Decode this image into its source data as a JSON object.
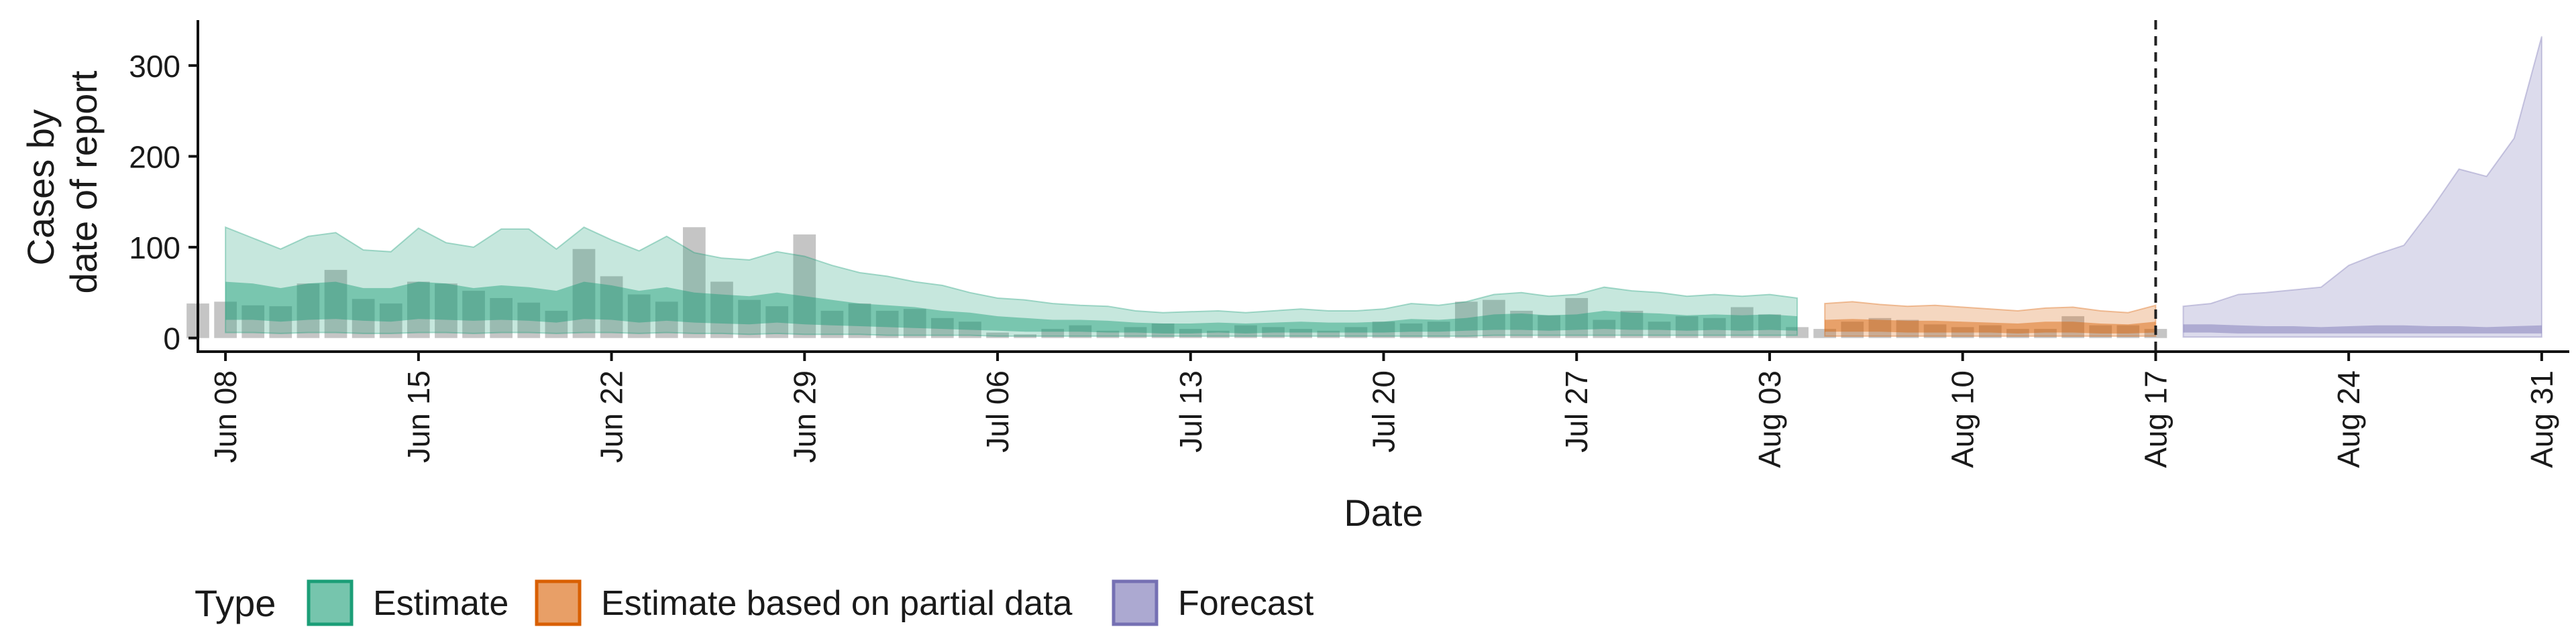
{
  "chart_data": {
    "type": "area",
    "title": "",
    "xlabel": "Date",
    "ylabel_lines": [
      "Cases by",
      "date of report"
    ],
    "ylim": [
      -15,
      350
    ],
    "yticks": [
      0,
      100,
      200,
      300
    ],
    "x_start": "Jun 07",
    "x_end": "Sep 01",
    "xticks": [
      "Jun 08",
      "Jun 15",
      "Jun 22",
      "Jun 29",
      "Jul 06",
      "Jul 13",
      "Jul 20",
      "Jul 27",
      "Aug 03",
      "Aug 10",
      "Aug 17",
      "Aug 24",
      "Aug 31"
    ],
    "vline": "Aug 17",
    "legend": {
      "title": "Type",
      "position": "bottom",
      "items": [
        {
          "label": "Estimate",
          "color": "#1b9e77"
        },
        {
          "label": "Estimate based on partial data",
          "color": "#d95f02"
        },
        {
          "label": "Forecast",
          "color": "#7570b3"
        }
      ]
    },
    "reported_cases": {
      "dates": [
        "Jun 07",
        "Jun 08",
        "Jun 09",
        "Jun 10",
        "Jun 11",
        "Jun 12",
        "Jun 13",
        "Jun 14",
        "Jun 15",
        "Jun 16",
        "Jun 17",
        "Jun 18",
        "Jun 19",
        "Jun 20",
        "Jun 21",
        "Jun 22",
        "Jun 23",
        "Jun 24",
        "Jun 25",
        "Jun 26",
        "Jun 27",
        "Jun 28",
        "Jun 29",
        "Jun 30",
        "Jul 01",
        "Jul 02",
        "Jul 03",
        "Jul 04",
        "Jul 05",
        "Jul 06",
        "Jul 07",
        "Jul 08",
        "Jul 09",
        "Jul 10",
        "Jul 11",
        "Jul 12",
        "Jul 13",
        "Jul 14",
        "Jul 15",
        "Jul 16",
        "Jul 17",
        "Jul 18",
        "Jul 19",
        "Jul 20",
        "Jul 21",
        "Jul 22",
        "Jul 23",
        "Jul 24",
        "Jul 25",
        "Jul 26",
        "Jul 27",
        "Jul 28",
        "Jul 29",
        "Jul 30",
        "Jul 31",
        "Aug 01",
        "Aug 02",
        "Aug 03",
        "Aug 04",
        "Aug 05",
        "Aug 06",
        "Aug 07",
        "Aug 08",
        "Aug 09",
        "Aug 10",
        "Aug 11",
        "Aug 12",
        "Aug 13",
        "Aug 14",
        "Aug 15",
        "Aug 16",
        "Aug 17"
      ],
      "values": [
        38,
        40,
        36,
        35,
        60,
        75,
        43,
        38,
        62,
        60,
        52,
        44,
        39,
        30,
        98,
        68,
        48,
        40,
        122,
        62,
        42,
        35,
        114,
        30,
        38,
        30,
        32,
        22,
        18,
        6,
        4,
        10,
        14,
        8,
        12,
        16,
        10,
        8,
        14,
        12,
        10,
        8,
        12,
        18,
        16,
        18,
        40,
        42,
        30,
        25,
        44,
        20,
        30,
        18,
        24,
        22,
        34,
        26,
        12,
        10,
        18,
        22,
        20,
        15,
        12,
        14,
        10,
        10,
        24,
        14,
        14,
        10
      ]
    },
    "series": [
      {
        "name": "Estimate",
        "dates": [
          "Jun 08",
          "Jun 09",
          "Jun 10",
          "Jun 11",
          "Jun 12",
          "Jun 13",
          "Jun 14",
          "Jun 15",
          "Jun 16",
          "Jun 17",
          "Jun 18",
          "Jun 19",
          "Jun 20",
          "Jun 21",
          "Jun 22",
          "Jun 23",
          "Jun 24",
          "Jun 25",
          "Jun 26",
          "Jun 27",
          "Jun 28",
          "Jun 29",
          "Jun 30",
          "Jul 01",
          "Jul 02",
          "Jul 03",
          "Jul 04",
          "Jul 05",
          "Jul 06",
          "Jul 07",
          "Jul 08",
          "Jul 09",
          "Jul 10",
          "Jul 11",
          "Jul 12",
          "Jul 13",
          "Jul 14",
          "Jul 15",
          "Jul 16",
          "Jul 17",
          "Jul 18",
          "Jul 19",
          "Jul 20",
          "Jul 21",
          "Jul 22",
          "Jul 23",
          "Jul 24",
          "Jul 25",
          "Jul 26",
          "Jul 27",
          "Jul 28",
          "Jul 29",
          "Jul 30",
          "Jul 31",
          "Aug 01",
          "Aug 02",
          "Aug 03",
          "Aug 04"
        ],
        "upper_90": [
          122,
          110,
          98,
          112,
          116,
          97,
          95,
          121,
          105,
          100,
          120,
          120,
          98,
          122,
          108,
          96,
          112,
          94,
          88,
          86,
          95,
          90,
          80,
          72,
          68,
          62,
          58,
          50,
          44,
          42,
          38,
          36,
          35,
          30,
          28,
          29,
          30,
          28,
          30,
          32,
          30,
          30,
          32,
          38,
          36,
          40,
          48,
          50,
          46,
          48,
          56,
          52,
          50,
          46,
          48,
          46,
          48,
          44
        ],
        "upper_50": [
          62,
          60,
          55,
          60,
          62,
          55,
          55,
          62,
          60,
          55,
          58,
          56,
          52,
          62,
          58,
          52,
          56,
          50,
          48,
          46,
          50,
          46,
          42,
          38,
          36,
          34,
          30,
          28,
          24,
          22,
          20,
          20,
          19,
          17,
          16,
          16,
          17,
          16,
          17,
          18,
          17,
          17,
          18,
          21,
          20,
          22,
          26,
          27,
          25,
          26,
          30,
          28,
          27,
          25,
          26,
          25,
          26,
          24
        ],
        "lower_50": [
          20,
          20,
          18,
          20,
          21,
          19,
          18,
          21,
          20,
          19,
          20,
          19,
          17,
          21,
          20,
          17,
          19,
          17,
          16,
          15,
          17,
          15,
          14,
          13,
          12,
          11,
          10,
          9,
          8,
          7,
          7,
          7,
          6,
          6,
          5,
          5,
          6,
          5,
          6,
          6,
          6,
          6,
          6,
          7,
          7,
          8,
          9,
          9,
          8,
          9,
          10,
          9,
          9,
          8,
          9,
          8,
          9,
          8
        ],
        "lower_90": [
          6,
          6,
          5,
          6,
          6,
          5,
          5,
          6,
          6,
          5,
          6,
          6,
          5,
          6,
          6,
          5,
          6,
          5,
          5,
          4,
          5,
          4,
          4,
          4,
          3,
          3,
          3,
          3,
          2,
          2,
          2,
          2,
          2,
          2,
          2,
          2,
          2,
          2,
          2,
          2,
          2,
          2,
          2,
          2,
          2,
          2,
          3,
          3,
          3,
          3,
          3,
          3,
          3,
          3,
          3,
          3,
          3,
          3
        ]
      },
      {
        "name": "Estimate based on partial data",
        "dates": [
          "Aug 05",
          "Aug 06",
          "Aug 07",
          "Aug 08",
          "Aug 09",
          "Aug 10",
          "Aug 11",
          "Aug 12",
          "Aug 13",
          "Aug 14",
          "Aug 15",
          "Aug 16",
          "Aug 17"
        ],
        "upper_90": [
          38,
          40,
          37,
          35,
          36,
          34,
          32,
          30,
          33,
          34,
          30,
          28,
          36
        ],
        "upper_50": [
          20,
          21,
          20,
          19,
          19,
          18,
          17,
          16,
          18,
          18,
          16,
          15,
          18
        ],
        "lower_50": [
          7,
          7,
          7,
          6,
          6,
          6,
          6,
          5,
          6,
          6,
          5,
          5,
          6
        ],
        "lower_90": [
          2,
          2,
          2,
          2,
          2,
          2,
          2,
          2,
          2,
          2,
          2,
          2,
          2
        ]
      },
      {
        "name": "Forecast",
        "dates": [
          "Aug 18",
          "Aug 19",
          "Aug 20",
          "Aug 21",
          "Aug 22",
          "Aug 23",
          "Aug 24",
          "Aug 25",
          "Aug 26",
          "Aug 27",
          "Aug 28",
          "Aug 29",
          "Aug 30",
          "Aug 31"
        ],
        "upper_90": [
          35,
          38,
          48,
          50,
          53,
          56,
          80,
          92,
          102,
          142,
          186,
          178,
          220,
          332
        ],
        "upper_50": [
          15,
          15,
          14,
          13,
          13,
          12,
          13,
          14,
          14,
          13,
          13,
          12,
          13,
          14
        ],
        "lower_50": [
          6,
          6,
          5,
          5,
          5,
          5,
          5,
          5,
          5,
          5,
          5,
          5,
          5,
          5
        ],
        "lower_90": [
          1,
          1,
          1,
          1,
          1,
          1,
          1,
          1,
          1,
          1,
          1,
          1,
          1,
          1
        ]
      }
    ]
  }
}
